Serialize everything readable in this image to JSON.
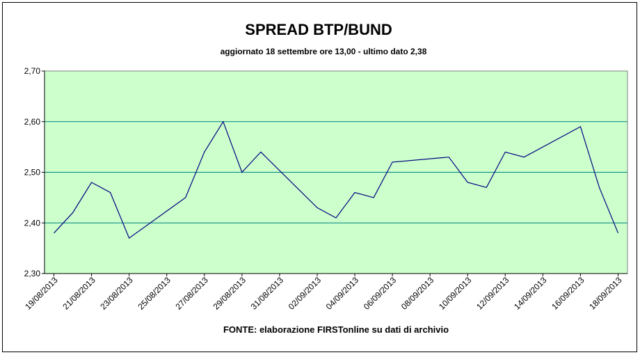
{
  "chart_data": {
    "type": "line",
    "title": "SPREAD BTP/BUND",
    "subtitle": "aggiornato 18 settembre ore 13,00 - ultimo dato 2,38",
    "source": "FONTE: elaborazione FIRSTonline su dati di archivio",
    "x": [
      "19/08/2013",
      "20/08/2013",
      "21/08/2013",
      "22/08/2013",
      "23/08/2013",
      "26/08/2013",
      "27/08/2013",
      "28/08/2013",
      "29/08/2013",
      "30/08/2013",
      "02/09/2013",
      "03/09/2013",
      "04/09/2013",
      "05/09/2013",
      "06/09/2013",
      "09/09/2013",
      "10/09/2013",
      "11/09/2013",
      "12/09/2013",
      "13/09/2013",
      "16/09/2013",
      "17/09/2013",
      "18/09/2013"
    ],
    "series": [
      {
        "name": "BTP/BUND",
        "color": "#000080",
        "values": [
          2.38,
          2.42,
          2.48,
          2.46,
          2.37,
          2.45,
          2.54,
          2.6,
          2.5,
          2.54,
          2.43,
          2.41,
          2.46,
          2.45,
          2.52,
          2.53,
          2.48,
          2.47,
          2.54,
          2.53,
          2.59,
          2.47,
          2.38
        ]
      }
    ],
    "xlim": [
      "19/08/2013",
      "18/09/2013"
    ],
    "xticks": [
      "19/08/2013",
      "21/08/2013",
      "23/08/2013",
      "25/08/2013",
      "27/08/2013",
      "29/08/2013",
      "31/08/2013",
      "02/09/2013",
      "04/09/2013",
      "06/09/2013",
      "08/09/2013",
      "10/09/2013",
      "12/09/2013",
      "14/09/2013",
      "16/09/2013",
      "18/09/2013"
    ],
    "ylim": [
      2.3,
      2.7
    ],
    "yticks": [
      {
        "value": 2.3,
        "label": "2,30"
      },
      {
        "value": 2.4,
        "label": "2,40"
      },
      {
        "value": 2.5,
        "label": "2,50"
      },
      {
        "value": 2.6,
        "label": "2,60"
      },
      {
        "value": 2.7,
        "label": "2,70"
      }
    ],
    "grid": true,
    "background": "#ccffcc",
    "grid_color": "#008080"
  }
}
